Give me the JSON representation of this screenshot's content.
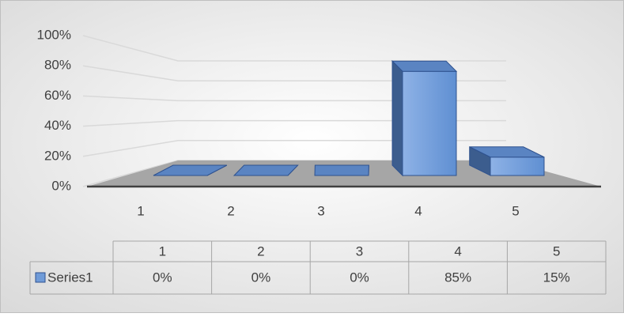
{
  "chart_data": {
    "type": "bar3d",
    "categories": [
      "1",
      "2",
      "3",
      "4",
      "5"
    ],
    "series": [
      {
        "name": "Series1",
        "color": "#6f9bd8",
        "values": [
          0,
          0,
          0,
          85,
          15
        ],
        "value_labels": [
          "0%",
          "0%",
          "0%",
          "85%",
          "15%"
        ]
      }
    ],
    "ylim": [
      0,
      100
    ],
    "yticks": [
      {
        "value": 0,
        "label": "0%"
      },
      {
        "value": 20,
        "label": "20%"
      },
      {
        "value": 40,
        "label": "40%"
      },
      {
        "value": 60,
        "label": "60%"
      },
      {
        "value": 80,
        "label": "80%"
      },
      {
        "value": 100,
        "label": "100%"
      }
    ],
    "grid": true,
    "data_table": true
  }
}
